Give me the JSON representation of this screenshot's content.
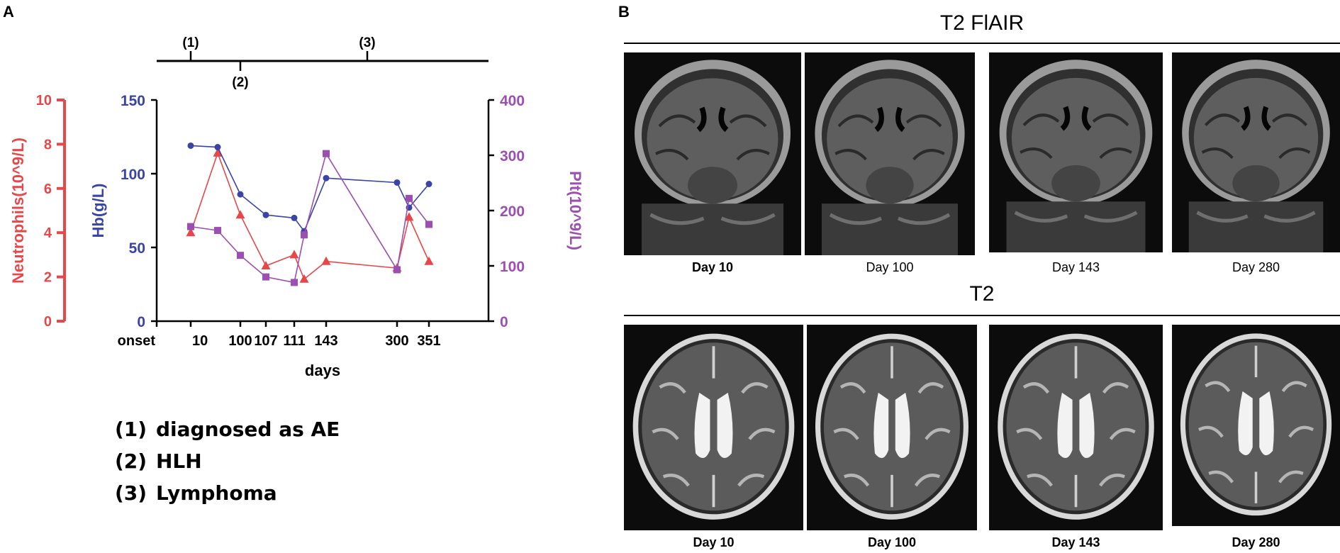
{
  "panel_a_letter": "A",
  "panel_b_letter": "B",
  "timeline": {
    "markers": [
      {
        "label": "(1)",
        "day": 10,
        "side": "top"
      },
      {
        "label": "(2)",
        "day": 100,
        "side": "bottom"
      },
      {
        "label": "(3)",
        "day": 300,
        "side": "top"
      }
    ]
  },
  "legend": [
    {
      "num": "(1)",
      "text": "diagnosed as AE"
    },
    {
      "num": "(2)",
      "text": "HLH"
    },
    {
      "num": "(3)",
      "text": "Lymphoma"
    }
  ],
  "colors": {
    "neutrophils": "#e8474a",
    "hb": "#3a44a6",
    "plt": "#9b4fb0",
    "axis_black": "#000000"
  },
  "chart_data": {
    "type": "line",
    "xlabel": "days",
    "x_tick_labels": [
      "onset",
      "10",
      "100",
      "107",
      "111",
      "143",
      "300",
      "351"
    ],
    "categories": [
      "onset",
      "10",
      "~50",
      "100",
      "107",
      "111",
      "~120",
      "143",
      "300",
      "~330",
      "351"
    ],
    "series": [
      {
        "name": "Neutrophils(10^9/L)",
        "axis": "left",
        "marker": "triangle",
        "color": "#e8474a",
        "values": [
          null,
          4.0,
          7.6,
          4.8,
          2.5,
          3.0,
          1.9,
          2.7,
          2.4,
          4.7,
          2.7
        ]
      },
      {
        "name": "Hb(g/L)",
        "axis": "middle",
        "marker": "circle",
        "color": "#3a44a6",
        "values": [
          null,
          119,
          118,
          86,
          72,
          70,
          61,
          97,
          94,
          77,
          93
        ]
      },
      {
        "name": "Plt(10^9/L)",
        "axis": "right",
        "marker": "square",
        "color": "#9b4fb0",
        "values": [
          null,
          171,
          164,
          119,
          80,
          70,
          156,
          303,
          93,
          222,
          175
        ]
      }
    ],
    "axes": [
      {
        "label": "Neutrophils(10^9/L)",
        "ylim": [
          0,
          10
        ],
        "ticks": [
          "0",
          "2",
          "4",
          "6",
          "8",
          "10"
        ],
        "color": "#e8474a"
      },
      {
        "label": "Hb(g/L)",
        "ylim": [
          0,
          150
        ],
        "ticks": [
          "0",
          "50",
          "100",
          "150"
        ],
        "color": "#3a44a6"
      },
      {
        "label": "Plt(10^9/L)",
        "ylim": [
          0,
          400
        ],
        "ticks": [
          "0",
          "100",
          "200",
          "300",
          "400"
        ],
        "color": "#9b4fb0"
      }
    ]
  },
  "panel_b": {
    "flair_title": "T2 FlAIR",
    "t2_title": "T2",
    "flair_labels": [
      "Day 10",
      "Day 100",
      "Day 143",
      "Day 280"
    ],
    "t2_labels": [
      "Day 10",
      "Day 100",
      "Day 143",
      "Day 280"
    ]
  }
}
